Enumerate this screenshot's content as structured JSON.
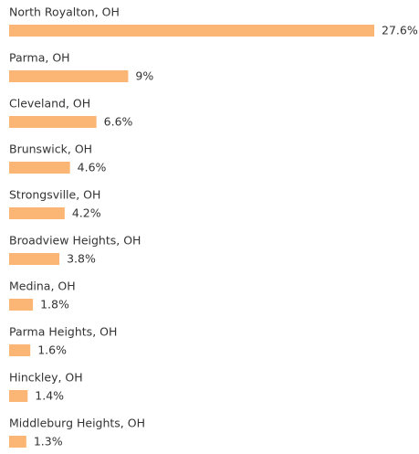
{
  "chart_data": {
    "type": "bar",
    "orientation": "horizontal",
    "categories": [
      "North Royalton, OH",
      "Parma, OH",
      "Cleveland, OH",
      "Brunswick, OH",
      "Strongsville, OH",
      "Broadview Heights, OH",
      "Medina, OH",
      "Parma Heights, OH",
      "Hinckley, OH",
      "Middleburg Heights, OH"
    ],
    "values": [
      27.6,
      9,
      6.6,
      4.6,
      4.2,
      3.8,
      1.8,
      1.6,
      1.4,
      1.3
    ],
    "value_labels": [
      "27.6%",
      "9%",
      "6.6%",
      "4.6%",
      "4.2%",
      "3.8%",
      "1.8%",
      "1.6%",
      "1.4%",
      "1.3%"
    ],
    "color": "#fbb676"
  }
}
